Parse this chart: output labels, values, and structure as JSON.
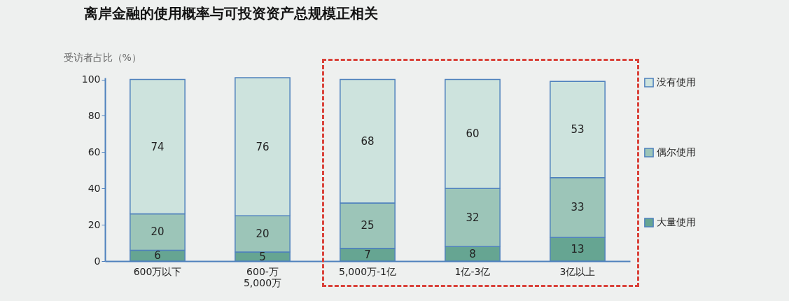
{
  "chart_data": {
    "type": "bar",
    "title": "离岸金融的使用概率与可投资资产总规模正相关",
    "ylabel": "受访者占比（%）",
    "categories": [
      "600万以下",
      "600-万\n5,000万",
      "5,000万-1亿",
      "1亿-3亿",
      "3亿以上"
    ],
    "stacked": true,
    "data_labels": true,
    "legend": "right",
    "grid": false,
    "ylim": [
      0,
      101
    ],
    "yticks": [
      0,
      20,
      40,
      60,
      80,
      100
    ],
    "series": [
      {
        "name": "大量使用",
        "color": "#66a592",
        "values": [
          6,
          5,
          7,
          8,
          13
        ]
      },
      {
        "name": "偶尔使用",
        "color": "#9cc5b8",
        "values": [
          20,
          20,
          25,
          32,
          33
        ]
      },
      {
        "name": "没有使用",
        "color": "#cde3dd",
        "values": [
          74,
          76,
          68,
          60,
          53
        ]
      }
    ]
  }
}
